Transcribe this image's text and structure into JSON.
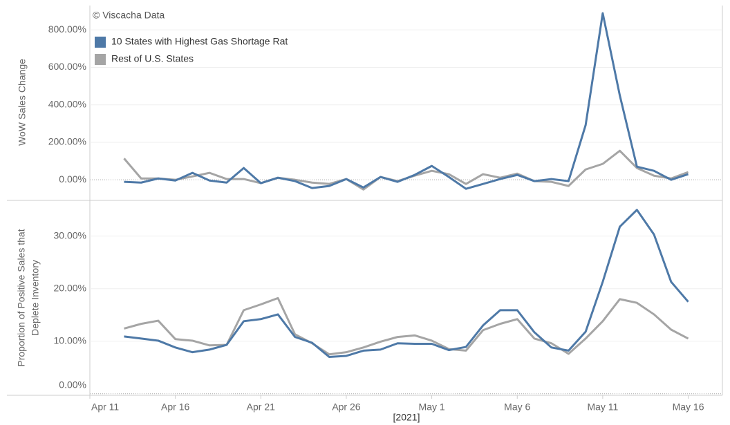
{
  "chart_data": [
    {
      "type": "line",
      "annotation": "© Viscacha Data",
      "ylabel": "WoW Sales Change",
      "legend": "upper left",
      "x": [
        "2021-04-13",
        "2021-04-14",
        "2021-04-15",
        "2021-04-16",
        "2021-04-17",
        "2021-04-18",
        "2021-04-19",
        "2021-04-20",
        "2021-04-21",
        "2021-04-22",
        "2021-04-23",
        "2021-04-24",
        "2021-04-25",
        "2021-04-26",
        "2021-04-27",
        "2021-04-28",
        "2021-04-29",
        "2021-04-30",
        "2021-05-01",
        "2021-05-02",
        "2021-05-03",
        "2021-05-04",
        "2021-05-05",
        "2021-05-06",
        "2021-05-07",
        "2021-05-08",
        "2021-05-09",
        "2021-05-10",
        "2021-05-11",
        "2021-05-12",
        "2021-05-13",
        "2021-05-14",
        "2021-05-15",
        "2021-05-16"
      ],
      "xlim": [
        "2021-04-11",
        "2021-05-18"
      ],
      "ylim": [
        -110,
        930
      ],
      "yticks": [
        {
          "value": 0,
          "label": "0.00%"
        },
        {
          "value": 200,
          "label": "200.00%"
        },
        {
          "value": 400,
          "label": "400.00%"
        },
        {
          "value": 600,
          "label": "600.00%"
        },
        {
          "value": 800,
          "label": "800.00%"
        }
      ],
      "grid": true,
      "series": [
        {
          "name": "Rest of U.S. States",
          "color": "#a5a5a5",
          "values": [
            114,
            7,
            7,
            0,
            18,
            37,
            4,
            4,
            -18,
            11,
            0,
            -15,
            -22,
            4,
            -52,
            15,
            -7,
            22,
            48,
            30,
            -22,
            30,
            11,
            33,
            -7,
            -11,
            -33,
            55,
            85,
            155,
            63,
            22,
            7,
            41
          ]
        },
        {
          "name": "10 States with Highest Gas Shortage Rat",
          "color": "#4e79a7",
          "values": [
            -11,
            -15,
            7,
            -4,
            37,
            -4,
            -15,
            63,
            -18,
            11,
            -7,
            -44,
            -33,
            4,
            -41,
            15,
            -11,
            26,
            74,
            15,
            -48,
            -22,
            4,
            26,
            -7,
            4,
            -7,
            292,
            889,
            450,
            70,
            48,
            0,
            30
          ]
        }
      ]
    },
    {
      "type": "line",
      "ylabel": [
        "Proportion of Positive Sales that",
        "Deplete Inventory"
      ],
      "xlabel": "[2021]",
      "x": [
        "2021-04-13",
        "2021-04-14",
        "2021-04-15",
        "2021-04-16",
        "2021-04-17",
        "2021-04-18",
        "2021-04-19",
        "2021-04-20",
        "2021-04-21",
        "2021-04-22",
        "2021-04-23",
        "2021-04-24",
        "2021-04-25",
        "2021-04-26",
        "2021-04-27",
        "2021-04-28",
        "2021-04-29",
        "2021-04-30",
        "2021-05-01",
        "2021-05-02",
        "2021-05-03",
        "2021-05-04",
        "2021-05-05",
        "2021-05-06",
        "2021-05-07",
        "2021-05-08",
        "2021-05-09",
        "2021-05-10",
        "2021-05-11",
        "2021-05-12",
        "2021-05-13",
        "2021-05-14",
        "2021-05-15",
        "2021-05-16"
      ],
      "xlim": [
        "2021-04-11",
        "2021-05-18"
      ],
      "xticks": [
        {
          "value": "2021-04-11",
          "label": "Apr 11"
        },
        {
          "value": "2021-04-16",
          "label": "Apr 16"
        },
        {
          "value": "2021-04-21",
          "label": "Apr 21"
        },
        {
          "value": "2021-04-26",
          "label": "Apr 26"
        },
        {
          "value": "2021-05-01",
          "label": "May 1"
        },
        {
          "value": "2021-05-06",
          "label": "May 6"
        },
        {
          "value": "2021-05-11",
          "label": "May 11"
        },
        {
          "value": "2021-05-16",
          "label": "May 16"
        }
      ],
      "ylim": [
        -0.3,
        36.8
      ],
      "yticks": [
        {
          "value": 0,
          "label": "0.00%"
        },
        {
          "value": 10,
          "label": "10.00%"
        },
        {
          "value": 20,
          "label": "20.00%"
        },
        {
          "value": 30,
          "label": "30.00%"
        }
      ],
      "grid": true,
      "series": [
        {
          "name": "Rest of U.S. States",
          "color": "#a5a5a5",
          "values": [
            12.4,
            13.3,
            13.9,
            10.4,
            10.1,
            9.2,
            9.3,
            15.9,
            17.0,
            18.2,
            11.3,
            9.6,
            7.5,
            7.9,
            8.8,
            9.9,
            10.8,
            11.1,
            10.1,
            8.5,
            8.2,
            12.1,
            13.3,
            14.2,
            10.5,
            9.6,
            7.6,
            10.5,
            13.8,
            18.0,
            17.3,
            15.1,
            12.2,
            10.5
          ]
        },
        {
          "name": "10 States with Highest Gas Shortage Rat",
          "color": "#4e79a7",
          "values": [
            10.9,
            10.5,
            10.1,
            8.8,
            7.9,
            8.4,
            9.3,
            13.8,
            14.2,
            15.1,
            10.8,
            9.7,
            7.0,
            7.2,
            8.2,
            8.4,
            9.6,
            9.5,
            9.5,
            8.3,
            8.9,
            13.0,
            15.9,
            15.9,
            11.7,
            8.8,
            8.2,
            11.8,
            21.3,
            31.8,
            35.0,
            30.3,
            21.3,
            17.5
          ]
        }
      ]
    }
  ]
}
